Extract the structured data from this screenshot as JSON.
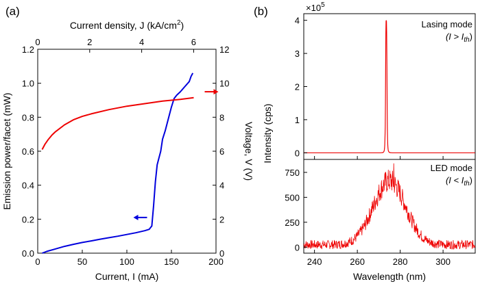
{
  "figure": {
    "panel_a_label": "(a)",
    "panel_b_label": "(b)"
  },
  "chart_data": [
    {
      "id": "a",
      "type": "line",
      "xlabel": "Current, I (mA)",
      "xlim": [
        0,
        200
      ],
      "xticks": [
        "0",
        "50",
        "100",
        "150",
        "200"
      ],
      "x2label_parts": [
        "Current density, J (kA/cm",
        "2",
        ")"
      ],
      "x2lim": [
        0,
        6.86
      ],
      "x2ticks": [
        "0",
        "2",
        "4",
        "6"
      ],
      "ylabel": "Emission power/facet (mW)",
      "ylim": [
        0,
        1.2
      ],
      "yticks": [
        "0.0",
        "0.2",
        "0.4",
        "0.6",
        "0.8",
        "1.0",
        "1.2"
      ],
      "y2label": "Voltage, V (V)",
      "y2lim": [
        0,
        12
      ],
      "y2ticks": [
        "0",
        "2",
        "4",
        "6",
        "8",
        "10",
        "12"
      ],
      "series": [
        {
          "axis": "left",
          "color": "#0000dd",
          "x": [
            5,
            10,
            20,
            30,
            40,
            50,
            60,
            70,
            80,
            90,
            100,
            110,
            120,
            125,
            128,
            130,
            132,
            134,
            136,
            138,
            140,
            143,
            146,
            150,
            153,
            156,
            160,
            165,
            170,
            172,
            174
          ],
          "y": [
            0.0,
            0.01,
            0.025,
            0.04,
            0.052,
            0.063,
            0.072,
            0.082,
            0.091,
            0.1,
            0.11,
            0.12,
            0.132,
            0.14,
            0.16,
            0.28,
            0.42,
            0.52,
            0.56,
            0.6,
            0.67,
            0.72,
            0.78,
            0.86,
            0.91,
            0.93,
            0.95,
            0.98,
            1.01,
            1.04,
            1.06
          ]
        },
        {
          "axis": "right",
          "color": "#ee0000",
          "x": [
            5,
            8,
            12,
            16,
            20,
            30,
            40,
            50,
            60,
            80,
            100,
            120,
            140,
            160,
            175
          ],
          "y": [
            6.1,
            6.4,
            6.7,
            6.95,
            7.15,
            7.55,
            7.85,
            8.05,
            8.2,
            8.45,
            8.65,
            8.8,
            8.95,
            9.05,
            9.15
          ]
        }
      ],
      "arrows": [
        {
          "color": "#0000dd",
          "direction": "left",
          "x": 115,
          "y": 0.21
        },
        {
          "color": "#ee0000",
          "direction": "right",
          "x": 195,
          "y": 9.5
        }
      ]
    },
    {
      "id": "b",
      "type": "line",
      "shared_x": true,
      "xlabel": "Wavelength (nm)",
      "xlim": [
        235,
        315
      ],
      "xticks": [
        "240",
        "260",
        "280",
        "300"
      ],
      "ylabel": "Intensity (cps)",
      "panels": [
        {
          "name": "lasing",
          "annotation": [
            "Lasing mode",
            "(I > I",
            "th",
            ")"
          ],
          "multiplier": "×10",
          "multiplier_exp": "5",
          "ylim": [
            -0.2,
            4.2
          ],
          "yticks": [
            "0",
            "1",
            "2",
            "3",
            "4"
          ],
          "color": "#ee0000",
          "peak": {
            "center": 273.5,
            "amplitude": 4.0,
            "width": 0.35,
            "baseline": 0.0
          }
        },
        {
          "name": "led",
          "annotation": [
            "LED mode",
            "(I < I",
            "th",
            ")"
          ],
          "ylim": [
            -60,
            880
          ],
          "yticks": [
            "0",
            "250",
            "500",
            "750"
          ],
          "color": "#ee0000",
          "spectrum": {
            "center": 275,
            "amplitude": 640,
            "sigma": 7.5,
            "baseline": 25,
            "noise": 45,
            "spike_x": 277,
            "spike_y": 840
          }
        }
      ]
    }
  ]
}
